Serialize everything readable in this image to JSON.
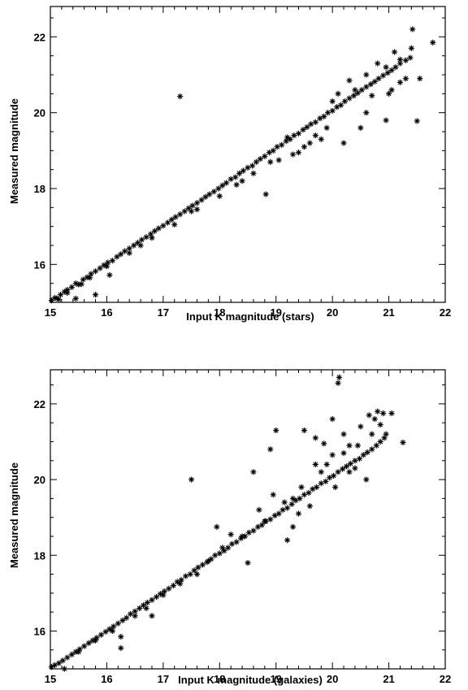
{
  "chart_data": [
    {
      "type": "scatter",
      "xlabel": "Input K magnitude (stars)",
      "ylabel": "Measured magnitude",
      "xlim": [
        15,
        22
      ],
      "ylim": [
        15,
        22.8
      ],
      "xticks": [
        15,
        16,
        17,
        18,
        19,
        20,
        21,
        22
      ],
      "yticks": [
        16,
        18,
        20,
        22
      ],
      "marker": "asterisk",
      "color": "#000000",
      "points": [
        [
          15.02,
          15.05
        ],
        [
          15.08,
          15.12
        ],
        [
          15.12,
          15.1
        ],
        [
          15.18,
          15.2
        ],
        [
          15.25,
          15.28
        ],
        [
          15.3,
          15.33
        ],
        [
          15.38,
          15.4
        ],
        [
          15.45,
          15.5
        ],
        [
          15.5,
          15.47
        ],
        [
          15.58,
          15.6
        ],
        [
          15.65,
          15.66
        ],
        [
          15.72,
          15.75
        ],
        [
          15.8,
          15.82
        ],
        [
          15.88,
          15.9
        ],
        [
          15.95,
          15.98
        ],
        [
          16.02,
          16.05
        ],
        [
          16.1,
          16.1
        ],
        [
          16.18,
          16.2
        ],
        [
          16.25,
          16.27
        ],
        [
          16.32,
          16.35
        ],
        [
          16.4,
          16.42
        ],
        [
          16.48,
          16.5
        ],
        [
          16.55,
          16.57
        ],
        [
          16.62,
          16.65
        ],
        [
          16.7,
          16.72
        ],
        [
          16.78,
          16.8
        ],
        [
          16.85,
          16.88
        ],
        [
          16.92,
          16.95
        ],
        [
          17.0,
          17.02
        ],
        [
          17.08,
          17.1
        ],
        [
          17.15,
          17.18
        ],
        [
          17.22,
          17.25
        ],
        [
          17.3,
          17.32
        ],
        [
          17.38,
          17.4
        ],
        [
          17.45,
          17.48
        ],
        [
          17.52,
          17.55
        ],
        [
          17.6,
          17.62
        ],
        [
          17.68,
          17.7
        ],
        [
          17.75,
          17.78
        ],
        [
          17.82,
          17.85
        ],
        [
          17.9,
          17.92
        ],
        [
          17.98,
          18.0
        ],
        [
          18.05,
          18.08
        ],
        [
          18.12,
          18.15
        ],
        [
          18.2,
          18.25
        ],
        [
          18.28,
          18.3
        ],
        [
          18.35,
          18.4
        ],
        [
          18.42,
          18.47
        ],
        [
          18.5,
          18.55
        ],
        [
          18.58,
          18.6
        ],
        [
          18.65,
          18.7
        ],
        [
          18.72,
          18.78
        ],
        [
          18.8,
          18.85
        ],
        [
          18.88,
          18.95
        ],
        [
          18.95,
          19.0
        ],
        [
          19.02,
          19.1
        ],
        [
          19.1,
          19.15
        ],
        [
          19.18,
          19.25
        ],
        [
          19.25,
          19.3
        ],
        [
          19.32,
          19.4
        ],
        [
          19.4,
          19.45
        ],
        [
          19.48,
          19.55
        ],
        [
          19.55,
          19.62
        ],
        [
          19.62,
          19.7
        ],
        [
          19.7,
          19.75
        ],
        [
          19.78,
          19.85
        ],
        [
          19.85,
          19.9
        ],
        [
          19.92,
          20.0
        ],
        [
          20.0,
          20.05
        ],
        [
          20.08,
          20.15
        ],
        [
          20.15,
          20.2
        ],
        [
          20.22,
          20.3
        ],
        [
          20.3,
          20.38
        ],
        [
          20.38,
          20.45
        ],
        [
          20.45,
          20.52
        ],
        [
          20.52,
          20.6
        ],
        [
          20.6,
          20.68
        ],
        [
          20.68,
          20.75
        ],
        [
          20.75,
          20.82
        ],
        [
          20.82,
          20.9
        ],
        [
          20.9,
          20.98
        ],
        [
          20.98,
          21.05
        ],
        [
          21.05,
          21.12
        ],
        [
          21.12,
          21.2
        ],
        [
          21.2,
          21.3
        ],
        [
          21.3,
          21.38
        ],
        [
          21.38,
          21.45
        ],
        [
          15.55,
          15.48
        ],
        [
          15.8,
          15.2
        ],
        [
          15.45,
          15.1
        ],
        [
          16.05,
          15.72
        ],
        [
          16.6,
          16.5
        ],
        [
          17.3,
          20.43
        ],
        [
          18.82,
          17.85
        ],
        [
          18.4,
          18.2
        ],
        [
          18.9,
          18.7
        ],
        [
          19.05,
          18.75
        ],
        [
          19.4,
          18.95
        ],
        [
          19.6,
          19.2
        ],
        [
          19.8,
          19.3
        ],
        [
          20.2,
          19.2
        ],
        [
          20.5,
          19.6
        ],
        [
          20.6,
          20.0
        ],
        [
          20.7,
          20.45
        ],
        [
          20.95,
          19.8
        ],
        [
          21.0,
          20.5
        ],
        [
          21.05,
          20.6
        ],
        [
          21.2,
          20.8
        ],
        [
          21.3,
          20.9
        ],
        [
          21.42,
          22.2
        ],
        [
          21.5,
          19.78
        ],
        [
          21.55,
          20.9
        ],
        [
          21.78,
          21.85
        ],
        [
          21.4,
          21.7
        ],
        [
          21.2,
          21.4
        ],
        [
          21.1,
          21.6
        ],
        [
          20.95,
          21.2
        ],
        [
          20.8,
          21.3
        ],
        [
          20.6,
          21.0
        ],
        [
          20.4,
          20.6
        ],
        [
          20.3,
          20.85
        ],
        [
          20.1,
          20.5
        ],
        [
          19.9,
          19.6
        ],
        [
          19.7,
          19.4
        ],
        [
          19.5,
          19.1
        ],
        [
          19.3,
          18.9
        ],
        [
          18.6,
          18.4
        ],
        [
          18.3,
          18.1
        ],
        [
          18.0,
          17.8
        ],
        [
          17.6,
          17.45
        ],
        [
          17.2,
          17.05
        ],
        [
          16.8,
          16.7
        ],
        [
          16.4,
          16.3
        ],
        [
          16.0,
          15.95
        ],
        [
          15.7,
          15.65
        ],
        [
          15.3,
          15.25
        ],
        [
          15.15,
          15.08
        ],
        [
          17.5,
          17.4
        ],
        [
          19.2,
          19.35
        ],
        [
          20.0,
          20.3
        ]
      ]
    },
    {
      "type": "scatter",
      "xlabel": "Input K magnitude (galaxies)",
      "ylabel": "Measured magnitude",
      "xlim": [
        15,
        22
      ],
      "ylim": [
        15,
        22.9
      ],
      "xticks": [
        15,
        16,
        17,
        18,
        19,
        20,
        21,
        22
      ],
      "yticks": [
        16,
        18,
        20,
        22
      ],
      "marker": "asterisk",
      "color": "#000000",
      "points": [
        [
          15.02,
          15.05
        ],
        [
          15.08,
          15.1
        ],
        [
          15.15,
          15.15
        ],
        [
          15.22,
          15.22
        ],
        [
          15.3,
          15.3
        ],
        [
          15.38,
          15.38
        ],
        [
          15.45,
          15.45
        ],
        [
          15.52,
          15.52
        ],
        [
          15.6,
          15.6
        ],
        [
          15.68,
          15.68
        ],
        [
          15.75,
          15.75
        ],
        [
          15.82,
          15.82
        ],
        [
          15.9,
          15.9
        ],
        [
          15.98,
          15.98
        ],
        [
          16.05,
          16.05
        ],
        [
          16.12,
          16.12
        ],
        [
          16.2,
          16.2
        ],
        [
          16.28,
          16.28
        ],
        [
          16.35,
          16.35
        ],
        [
          16.42,
          16.45
        ],
        [
          16.5,
          16.52
        ],
        [
          16.58,
          16.6
        ],
        [
          16.65,
          16.68
        ],
        [
          16.72,
          16.75
        ],
        [
          16.8,
          16.82
        ],
        [
          16.88,
          16.9
        ],
        [
          16.95,
          16.98
        ],
        [
          17.02,
          17.05
        ],
        [
          17.1,
          17.12
        ],
        [
          17.18,
          17.2
        ],
        [
          17.25,
          17.3
        ],
        [
          17.32,
          17.35
        ],
        [
          17.4,
          17.45
        ],
        [
          17.48,
          17.5
        ],
        [
          17.55,
          17.6
        ],
        [
          17.62,
          17.68
        ],
        [
          17.7,
          17.75
        ],
        [
          17.78,
          17.82
        ],
        [
          17.85,
          17.9
        ],
        [
          17.92,
          18.0
        ],
        [
          18.0,
          18.05
        ],
        [
          18.08,
          18.12
        ],
        [
          18.15,
          18.2
        ],
        [
          18.22,
          18.3
        ],
        [
          18.3,
          18.35
        ],
        [
          18.38,
          18.45
        ],
        [
          18.45,
          18.5
        ],
        [
          18.52,
          18.6
        ],
        [
          18.6,
          18.65
        ],
        [
          18.68,
          18.75
        ],
        [
          18.75,
          18.8
        ],
        [
          18.82,
          18.9
        ],
        [
          18.9,
          18.95
        ],
        [
          18.98,
          19.05
        ],
        [
          19.05,
          19.1
        ],
        [
          19.12,
          19.2
        ],
        [
          19.2,
          19.25
        ],
        [
          19.28,
          19.35
        ],
        [
          19.35,
          19.45
        ],
        [
          19.42,
          19.5
        ],
        [
          19.5,
          19.6
        ],
        [
          19.58,
          19.65
        ],
        [
          19.65,
          19.75
        ],
        [
          19.72,
          19.8
        ],
        [
          19.8,
          19.9
        ],
        [
          19.88,
          19.95
        ],
        [
          19.95,
          20.05
        ],
        [
          20.02,
          20.1
        ],
        [
          20.1,
          20.2
        ],
        [
          20.18,
          20.28
        ],
        [
          20.25,
          20.35
        ],
        [
          20.32,
          20.42
        ],
        [
          20.4,
          20.5
        ],
        [
          20.48,
          20.55
        ],
        [
          20.55,
          20.65
        ],
        [
          20.62,
          20.72
        ],
        [
          20.7,
          20.8
        ],
        [
          20.78,
          20.9
        ],
        [
          20.85,
          21.0
        ],
        [
          20.92,
          21.1
        ],
        [
          15.25,
          15.0
        ],
        [
          16.25,
          15.55
        ],
        [
          16.25,
          15.85
        ],
        [
          16.8,
          16.4
        ],
        [
          17.5,
          20.0
        ],
        [
          17.95,
          18.75
        ],
        [
          18.5,
          17.8
        ],
        [
          18.6,
          20.2
        ],
        [
          18.9,
          20.8
        ],
        [
          19.0,
          21.3
        ],
        [
          19.2,
          18.4
        ],
        [
          19.3,
          18.75
        ],
        [
          19.4,
          19.1
        ],
        [
          19.5,
          21.3
        ],
        [
          19.7,
          21.1
        ],
        [
          19.8,
          20.2
        ],
        [
          19.9,
          20.4
        ],
        [
          20.0,
          21.6
        ],
        [
          20.05,
          19.8
        ],
        [
          20.1,
          22.55
        ],
        [
          20.12,
          22.7
        ],
        [
          20.2,
          21.2
        ],
        [
          20.3,
          20.9
        ],
        [
          20.4,
          20.3
        ],
        [
          20.5,
          21.4
        ],
        [
          20.6,
          20.0
        ],
        [
          20.65,
          21.7
        ],
        [
          20.75,
          21.6
        ],
        [
          20.8,
          21.8
        ],
        [
          20.9,
          21.75
        ],
        [
          21.05,
          21.75
        ],
        [
          21.25,
          20.98
        ],
        [
          20.95,
          21.2
        ],
        [
          20.85,
          21.45
        ],
        [
          20.7,
          21.2
        ],
        [
          20.45,
          20.9
        ],
        [
          20.3,
          20.2
        ],
        [
          20.2,
          20.7
        ],
        [
          20.0,
          20.65
        ],
        [
          19.85,
          20.95
        ],
        [
          19.7,
          20.4
        ],
        [
          19.6,
          19.3
        ],
        [
          19.45,
          19.8
        ],
        [
          19.3,
          19.5
        ],
        [
          19.15,
          19.4
        ],
        [
          18.95,
          19.6
        ],
        [
          18.8,
          18.9
        ],
        [
          18.7,
          19.2
        ],
        [
          18.4,
          18.5
        ],
        [
          18.2,
          18.55
        ],
        [
          18.05,
          18.2
        ],
        [
          17.8,
          17.85
        ],
        [
          17.6,
          17.5
        ],
        [
          17.3,
          17.25
        ],
        [
          17.0,
          16.95
        ],
        [
          16.7,
          16.6
        ],
        [
          16.5,
          16.4
        ],
        [
          16.1,
          16.0
        ],
        [
          15.8,
          15.75
        ],
        [
          15.5,
          15.45
        ]
      ]
    }
  ]
}
